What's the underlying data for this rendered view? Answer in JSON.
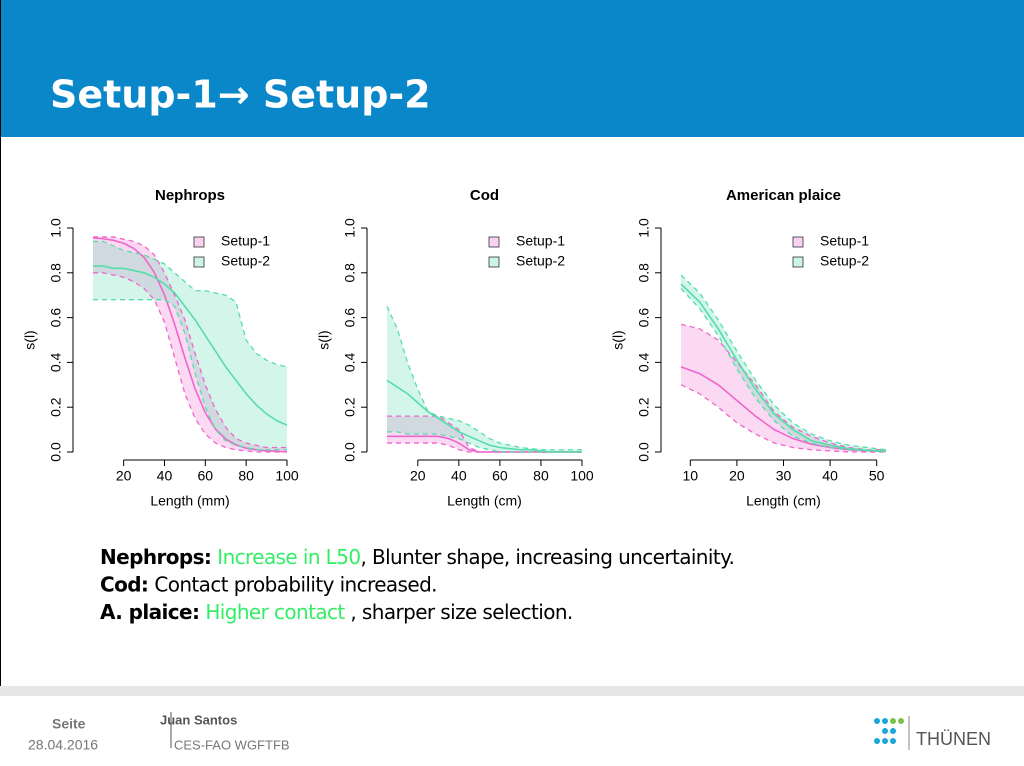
{
  "title": "Setup-1→ Setup-2",
  "chart_data": [
    {
      "type": "line",
      "title": "Nephrops",
      "xlabel": "Length (mm)",
      "ylabel": "s(l)",
      "legend": "topright",
      "x": [
        5,
        10,
        15,
        20,
        25,
        30,
        35,
        40,
        45,
        50,
        55,
        60,
        65,
        70,
        75,
        80,
        85,
        90,
        95,
        100
      ],
      "xlim": [
        5,
        100
      ],
      "xticks": [
        20,
        40,
        60,
        80,
        100
      ],
      "ylim": [
        0,
        1
      ],
      "yticks": [
        {
          "value": 0,
          "label": "0.0"
        },
        0.2,
        0.4,
        0.6,
        0.8,
        {
          "value": 1,
          "label": "1.0"
        }
      ],
      "series": [
        {
          "name": "Setup-1",
          "color": "#ee66cc",
          "values": [
            0.956,
            0.952,
            0.945,
            0.932,
            0.909,
            0.869,
            0.802,
            0.702,
            0.569,
            0.42,
            0.282,
            0.175,
            0.102,
            0.058,
            0.032,
            0.017,
            0.01,
            0.005,
            0.003,
            0.001
          ],
          "lower": [
            0.8,
            0.8,
            0.79,
            0.78,
            0.76,
            0.73,
            0.68,
            0.58,
            0.42,
            0.26,
            0.15,
            0.08,
            0.04,
            0.02,
            0.01,
            0.005,
            0,
            0,
            0,
            0
          ],
          "upper": [
            0.96,
            0.96,
            0.96,
            0.95,
            0.94,
            0.92,
            0.88,
            0.8,
            0.7,
            0.59,
            0.44,
            0.3,
            0.19,
            0.11,
            0.06,
            0.04,
            0.03,
            0.02,
            0.02,
            0.02
          ]
        },
        {
          "name": "Setup-2",
          "color": "#55ddaa",
          "values": [
            0.83,
            0.83,
            0.82,
            0.82,
            0.81,
            0.8,
            0.78,
            0.75,
            0.71,
            0.65,
            0.59,
            0.52,
            0.45,
            0.38,
            0.32,
            0.26,
            0.21,
            0.17,
            0.14,
            0.12
          ],
          "lower": [
            0.68,
            0.68,
            0.68,
            0.68,
            0.68,
            0.68,
            0.68,
            0.68,
            0.65,
            0.53,
            0.35,
            0.2,
            0.1,
            0.05,
            0.03,
            0.02,
            0.01,
            0.01,
            0.01,
            0.01
          ],
          "upper": [
            0.94,
            0.94,
            0.92,
            0.9,
            0.89,
            0.88,
            0.86,
            0.84,
            0.8,
            0.76,
            0.72,
            0.72,
            0.71,
            0.7,
            0.67,
            0.5,
            0.44,
            0.41,
            0.39,
            0.38
          ]
        }
      ]
    },
    {
      "type": "line",
      "title": "Cod",
      "xlabel": "Length (cm)",
      "ylabel": "s(l)",
      "legend": "topright",
      "x": [
        5,
        10,
        15,
        20,
        25,
        30,
        35,
        40,
        45,
        50,
        55,
        60,
        65,
        70,
        75,
        80,
        85,
        90,
        95,
        100
      ],
      "xlim": [
        5,
        100
      ],
      "xticks": [
        20,
        40,
        60,
        80,
        100
      ],
      "ylim": [
        0,
        1
      ],
      "yticks": [
        {
          "value": 0,
          "label": "0.0"
        },
        0.2,
        0.4,
        0.6,
        0.8,
        {
          "value": 1,
          "label": "1.0"
        }
      ],
      "series": [
        {
          "name": "Setup-1",
          "color": "#ee66cc",
          "values": [
            0.07,
            0.07,
            0.07,
            0.07,
            0.07,
            0.07,
            0.06,
            0.04,
            0.01,
            0,
            0,
            0,
            0,
            0,
            0,
            0,
            0,
            0,
            0,
            0
          ],
          "lower": [
            0.04,
            0.04,
            0.04,
            0.04,
            0.04,
            0.04,
            0.03,
            0.01,
            0,
            0,
            0,
            0,
            0,
            0,
            0,
            0,
            0,
            0,
            0,
            0
          ],
          "upper": [
            0.16,
            0.16,
            0.16,
            0.16,
            0.16,
            0.16,
            0.13,
            0.1,
            0.02,
            0,
            0,
            0,
            0,
            0,
            0,
            0,
            0,
            0,
            0,
            0
          ]
        },
        {
          "name": "Setup-2",
          "color": "#55ddaa",
          "values": [
            0.32,
            0.29,
            0.26,
            0.22,
            0.18,
            0.15,
            0.12,
            0.09,
            0.07,
            0.05,
            0.03,
            0.02,
            0.015,
            0.01,
            0.01,
            0.005,
            0,
            0,
            0,
            0
          ],
          "lower": [
            0.09,
            0.09,
            0.08,
            0.08,
            0.08,
            0.08,
            0.07,
            0.06,
            0.04,
            0.02,
            0.01,
            0,
            0,
            0,
            0,
            0,
            0,
            0,
            0,
            0
          ],
          "upper": [
            0.65,
            0.55,
            0.4,
            0.28,
            0.18,
            0.16,
            0.15,
            0.14,
            0.12,
            0.09,
            0.06,
            0.04,
            0.03,
            0.02,
            0.015,
            0.01,
            0.01,
            0.01,
            0.01,
            0.01
          ]
        }
      ]
    },
    {
      "type": "line",
      "title": "American plaice",
      "xlabel": "Length (cm)",
      "ylabel": "s(l)",
      "legend": "topright",
      "x": [
        8,
        12,
        16,
        20,
        24,
        28,
        32,
        36,
        40,
        44,
        48,
        52
      ],
      "xlim": [
        8,
        52
      ],
      "xticks": [
        10,
        20,
        30,
        40,
        50
      ],
      "ylim": [
        0,
        1
      ],
      "yticks": [
        {
          "value": 0,
          "label": "0.0"
        },
        0.2,
        0.4,
        0.6,
        0.8,
        {
          "value": 1,
          "label": "1.0"
        }
      ],
      "series": [
        {
          "name": "Setup-1",
          "color": "#ee66cc",
          "values": [
            0.38,
            0.35,
            0.3,
            0.23,
            0.16,
            0.1,
            0.06,
            0.035,
            0.02,
            0.01,
            0.005,
            0.003
          ],
          "lower": [
            0.3,
            0.26,
            0.2,
            0.13,
            0.08,
            0.04,
            0.02,
            0.01,
            0.005,
            0,
            0,
            0
          ],
          "upper": [
            0.57,
            0.55,
            0.5,
            0.4,
            0.3,
            0.18,
            0.11,
            0.07,
            0.04,
            0.02,
            0.01,
            0.01
          ]
        },
        {
          "name": "Setup-2",
          "color": "#55ddaa",
          "values": [
            0.75,
            0.67,
            0.55,
            0.41,
            0.28,
            0.17,
            0.1,
            0.05,
            0.03,
            0.015,
            0.008,
            0.004
          ],
          "lower": [
            0.73,
            0.64,
            0.52,
            0.37,
            0.24,
            0.14,
            0.07,
            0.04,
            0.02,
            0.01,
            0.005,
            0.002
          ],
          "upper": [
            0.79,
            0.71,
            0.59,
            0.45,
            0.32,
            0.21,
            0.13,
            0.08,
            0.05,
            0.03,
            0.02,
            0.01
          ]
        }
      ]
    }
  ],
  "notes": [
    {
      "label": "Nephrops:",
      "parts": [
        {
          "text": "Increase in L50",
          "color": "#33ee66"
        },
        {
          "text": ", Blunter shape, increasing uncertainity."
        }
      ]
    },
    {
      "label": "Cod:",
      "parts": [
        {
          "text": "Contact probability increased."
        }
      ]
    },
    {
      "label": "A. plaice:",
      "parts": [
        {
          "text": "Higher contact ",
          "color": "#33ee66"
        },
        {
          "text": ", sharper size selection."
        }
      ]
    }
  ],
  "footer": {
    "page": "Seite",
    "date": "28.04.2016",
    "author": "Juan Santos",
    "group": "CES-FAO WGFTFB",
    "logo": "THÜNEN"
  }
}
